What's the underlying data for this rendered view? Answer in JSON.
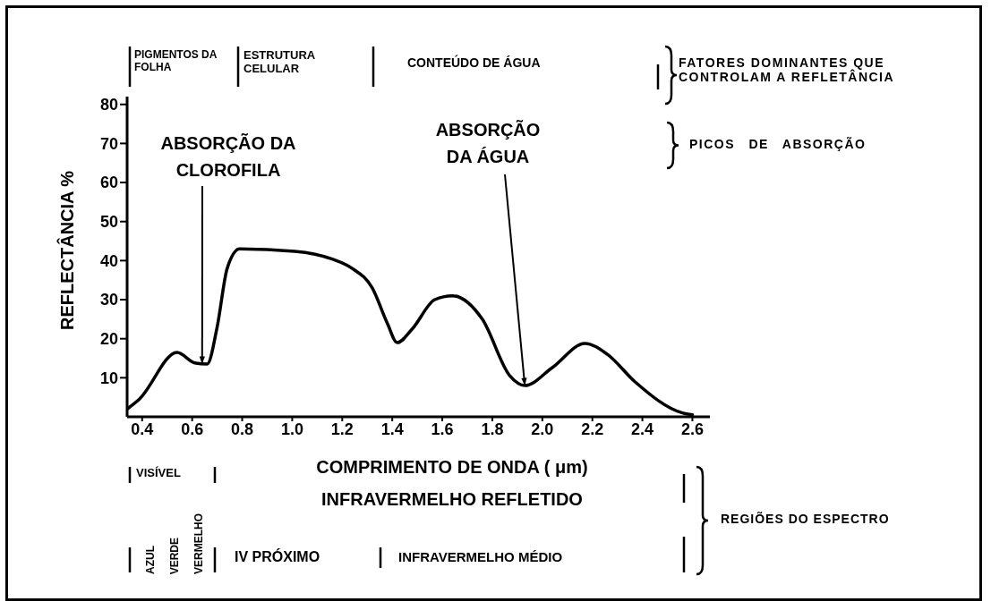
{
  "chart_data": {
    "type": "line",
    "xlabel": "COMPRIMENTO DE ONDA ( μm)",
    "ylabel": "REFLECTÂNCIA %",
    "x": [
      0.34,
      0.39,
      0.54,
      0.61,
      0.66,
      0.7,
      0.74,
      0.79,
      1.01,
      1.16,
      1.24,
      1.32,
      1.38,
      1.42,
      1.48,
      1.57,
      1.64,
      1.76,
      1.87,
      1.93,
      2.04,
      2.17,
      2.26,
      2.37,
      2.56,
      2.6
    ],
    "series": [
      {
        "color": "#000000",
        "values": [
          2,
          4.6,
          16.5,
          13.8,
          13.5,
          23,
          38,
          43,
          42.4,
          40.4,
          38,
          33,
          24,
          19,
          22.5,
          30,
          31,
          25,
          10.5,
          8,
          12.6,
          18.8,
          16,
          9,
          1,
          0.5
        ]
      }
    ],
    "xlim": [
      0.34,
      2.67
    ],
    "xticks": [
      0.4,
      0.6,
      0.8,
      {
        "value": 1,
        "label": "1.0"
      },
      1.2,
      1.4,
      1.6,
      1.8,
      {
        "value": 2,
        "label": "2.0"
      },
      2.2,
      2.4,
      2.6
    ],
    "ylim": [
      0,
      82
    ],
    "yticks": [
      10,
      20,
      30,
      40,
      50,
      60,
      70,
      80
    ],
    "marker": "none",
    "line_style": "solid",
    "annotations": [
      {
        "text": "ABSORÇÃO DA CLOROFILA",
        "x": 0.64,
        "y": 13.5
      },
      {
        "text": "ABSORÇÃO DA ÁGUA",
        "x": 1.93,
        "y": 8
      },
      "PIGMENTOS DA FOLHA",
      "ESTRUTURA CELULAR",
      "CONTEÚDO DE ÁGUA",
      "FATORES DOMINANTES QUE CONTROLAM A REFLETÂNCIA",
      "PICOS DE ABSORÇÃO",
      "VISÍVEL",
      "INFRAVERMELHO REFLETIDO",
      "AZUL",
      "VERDE",
      "VERMELHO",
      "IV PRÓXIMO",
      "INFRAVERMELHO MÉDIO",
      "REGIÕES DO ESPECTRO"
    ]
  }
}
